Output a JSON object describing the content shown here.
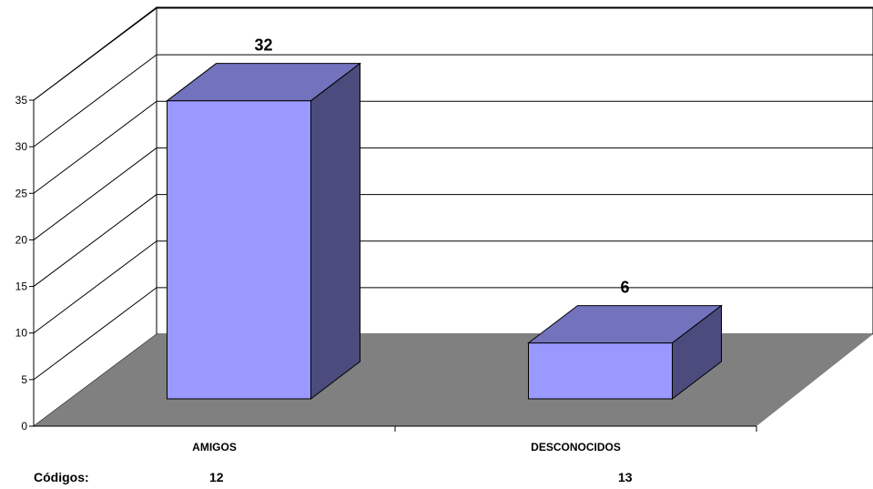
{
  "chart_data": {
    "type": "bar",
    "categories": [
      "AMIGOS",
      "DESCONOCIDOS"
    ],
    "values": [
      32,
      6
    ],
    "data_labels": [
      "32",
      "6"
    ],
    "ylim": [
      0,
      35
    ],
    "yticks": [
      "0",
      "5",
      "10",
      "15",
      "20",
      "25",
      "30",
      "35"
    ],
    "grid": true,
    "legend": "none",
    "title": "",
    "xlabel": "",
    "ylabel": "",
    "colors": {
      "bar_front": "#9999ff",
      "bar_top": "#7272bd",
      "bar_side": "#4b4b7d",
      "floor": "#808080"
    }
  },
  "codes": {
    "label": "Códigos:",
    "values": [
      "12",
      "13"
    ]
  }
}
